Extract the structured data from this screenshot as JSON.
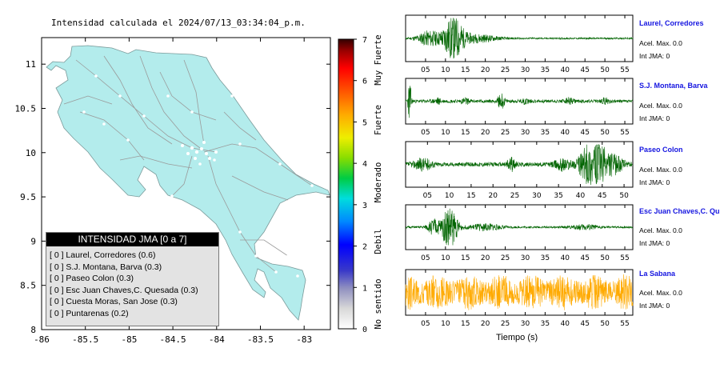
{
  "map": {
    "title": "Intensidad calculada el 2024/07/13_03:34:04_p.m.",
    "x_ticks": [
      "-86",
      "-85.5",
      "-85",
      "-84.5",
      "-84",
      "-83.5",
      "-83"
    ],
    "y_ticks": [
      "11",
      "10.5",
      "10",
      "9.5",
      "9",
      "8.5",
      "8"
    ],
    "xlim": [
      -86,
      -82.7
    ],
    "ylim": [
      8,
      11.3
    ]
  },
  "colorbar": {
    "ticks": [
      "0",
      "1",
      "2",
      "3",
      "4",
      "5",
      "6",
      "7"
    ],
    "categories": [
      "No sentido",
      "Debil",
      "Moderado",
      "Fuerte",
      "Muy Fuerte"
    ]
  },
  "legend": {
    "header": "INTENSIDAD JMA [0 a 7]",
    "items": [
      "[ 0 ]  Laurel, Corredores (0.6)",
      "[ 0 ]  S.J. Montana, Barva (0.3)",
      "[ 0 ]  Paseo Colon (0.3)",
      "[ 0 ]  Esc Juan Chaves,C. Quesada (0.3)",
      "[ 0 ]  Cuesta Moras, San Jose (0.3)",
      "[ 0 ]  Puntarenas (0.2)"
    ]
  },
  "stations": [
    {
      "name": "Laurel, Corredores",
      "acel": "Acel. Max. 0.0",
      "jma": "Int JMA: 0",
      "color": "#006400"
    },
    {
      "name": "S.J. Montana, Barva",
      "acel": "Acel. Max. 0.0",
      "jma": "Int JMA: 0",
      "color": "#006400"
    },
    {
      "name": "Paseo Colon",
      "acel": "Acel. Max. 0.0",
      "jma": "Int JMA: 0",
      "color": "#006400"
    },
    {
      "name": "Esc Juan Chaves,C. Qu",
      "acel": "Acel. Max. 0.0",
      "jma": "Int JMA: 0",
      "color": "#006400"
    },
    {
      "name": "La Sabana",
      "acel": "Acel. Max. 0.0",
      "jma": "Int JMA: 0",
      "color": "#ffaa00"
    }
  ],
  "time_axis": {
    "label": "Tiempo (s)",
    "ticks_a": [
      "05",
      "10",
      "15",
      "20",
      "25",
      "30",
      "35",
      "40",
      "45",
      "50",
      "55"
    ],
    "ticks_b": [
      "05",
      "10",
      "15",
      "20",
      "25",
      "30",
      "35",
      "40",
      "45",
      "50"
    ]
  },
  "chart_data": [
    {
      "type": "scatter",
      "title": "Intensidad calculada el 2024/07/13_03:34:04_p.m.",
      "xlabel": "",
      "ylabel": "",
      "xlim": [
        -86,
        -82.7
      ],
      "ylim": [
        8,
        11.3
      ],
      "legend_title": "INTENSIDAD JMA [0 a 7]",
      "series": [
        {
          "name": "Laurel, Corredores",
          "intensity": 0,
          "value": 0.6
        },
        {
          "name": "S.J. Montana, Barva",
          "intensity": 0,
          "value": 0.3
        },
        {
          "name": "Paseo Colon",
          "intensity": 0,
          "value": 0.3
        },
        {
          "name": "Esc Juan Chaves,C. Quesada",
          "intensity": 0,
          "value": 0.3
        },
        {
          "name": "Cuesta Moras, San Jose",
          "intensity": 0,
          "value": 0.3
        },
        {
          "name": "Puntarenas",
          "intensity": 0,
          "value": 0.2
        }
      ]
    },
    {
      "type": "line",
      "xlabel": "Tiempo (s)",
      "xlim": [
        0,
        57
      ],
      "series": [
        {
          "name": "Laurel, Corredores",
          "acel_max": 0.0,
          "int_jma": 0
        },
        {
          "name": "S.J. Montana, Barva",
          "acel_max": 0.0,
          "int_jma": 0
        },
        {
          "name": "Paseo Colon",
          "acel_max": 0.0,
          "int_jma": 0
        },
        {
          "name": "Esc Juan Chaves,C. Qu",
          "acel_max": 0.0,
          "int_jma": 0
        },
        {
          "name": "La Sabana",
          "acel_max": 0.0,
          "int_jma": 0
        }
      ]
    }
  ]
}
